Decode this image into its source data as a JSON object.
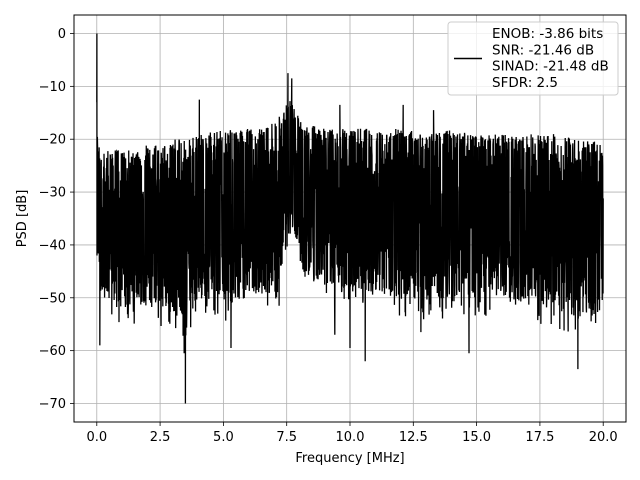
{
  "chart_data": {
    "type": "line",
    "title": "",
    "xlabel": "Frequency [MHz]",
    "ylabel": "PSD [dB]",
    "xlim": [
      -0.9,
      20.9
    ],
    "ylim": [
      -73.5,
      3.5
    ],
    "xticks": [
      0.0,
      2.5,
      5.0,
      7.5,
      10.0,
      12.5,
      15.0,
      17.5,
      20.0
    ],
    "xtick_labels": [
      "0.0",
      "2.5",
      "5.0",
      "7.5",
      "10.0",
      "12.5",
      "15.0",
      "17.5",
      "20.0"
    ],
    "yticks": [
      0,
      -10,
      -20,
      -30,
      -40,
      -50,
      -60,
      -70
    ],
    "ytick_labels": [
      "0",
      "−10",
      "−20",
      "−30",
      "−40",
      "−50",
      "−60",
      "−70"
    ],
    "grid": true,
    "legend_position": "top-right",
    "legend_lines": [
      "ENOB: -3.86 bits",
      "SNR: -21.46 dB",
      "SINAD: -21.48 dB",
      "SFDR: 2.5"
    ],
    "series": [
      {
        "color": "#000000",
        "x_range": [
          0.0,
          20.0
        ],
        "envelope": {
          "x": [
            0.0,
            0.05,
            0.3,
            1.0,
            2.0,
            3.0,
            3.5,
            4.0,
            5.0,
            6.0,
            7.0,
            7.3,
            7.6,
            7.8,
            8.2,
            9.0,
            10.0,
            11.0,
            12.0,
            13.0,
            14.0,
            15.0,
            16.0,
            17.0,
            18.0,
            19.0,
            20.0
          ],
          "upper": [
            -13,
            -21,
            -22,
            -22,
            -21,
            -20,
            -20,
            -19,
            -18,
            -18,
            -17,
            -15,
            -11,
            -14,
            -17,
            -18,
            -18,
            -18,
            -18,
            -19,
            -18,
            -19,
            -19,
            -19,
            -19,
            -20,
            -20
          ],
          "lower": [
            -43,
            -46,
            -50,
            -52,
            -51,
            -53,
            -55,
            -50,
            -51,
            -50,
            -49,
            -45,
            -34,
            -40,
            -46,
            -48,
            -48,
            -49,
            -50,
            -51,
            -51,
            -50,
            -50,
            -51,
            -52,
            -54,
            -53
          ]
        },
        "peaks": [
          {
            "x": 0.0,
            "y": 0.0
          },
          {
            "x": 4.05,
            "y": -12.5
          },
          {
            "x": 7.55,
            "y": -7.5
          },
          {
            "x": 7.7,
            "y": -8.5
          },
          {
            "x": 12.1,
            "y": -13.5
          },
          {
            "x": 13.3,
            "y": -14.5
          },
          {
            "x": 9.6,
            "y": -13.5
          }
        ],
        "dips": [
          {
            "x": 0.12,
            "y": -59.0
          },
          {
            "x": 3.5,
            "y": -70.0
          },
          {
            "x": 3.45,
            "y": -60.5
          },
          {
            "x": 5.3,
            "y": -59.5
          },
          {
            "x": 10.0,
            "y": -59.5
          },
          {
            "x": 10.6,
            "y": -62.0
          },
          {
            "x": 14.7,
            "y": -60.5
          },
          {
            "x": 19.0,
            "y": -63.5
          },
          {
            "x": 18.9,
            "y": -56.0
          },
          {
            "x": 12.8,
            "y": -56.5
          },
          {
            "x": 9.4,
            "y": -57.0
          },
          {
            "x": 7.2,
            "y": -51.5
          }
        ]
      }
    ]
  }
}
